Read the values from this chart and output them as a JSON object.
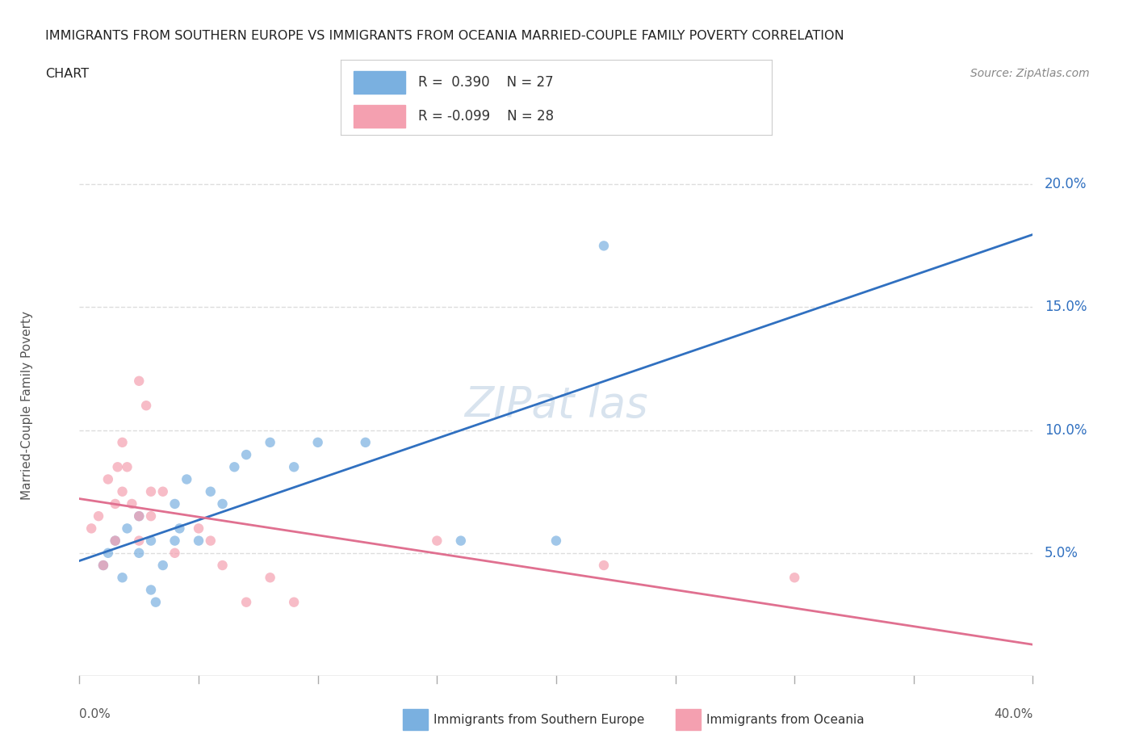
{
  "title_line1": "IMMIGRANTS FROM SOUTHERN EUROPE VS IMMIGRANTS FROM OCEANIA MARRIED-COUPLE FAMILY POVERTY CORRELATION",
  "title_line2": "CHART",
  "source": "Source: ZipAtlas.com",
  "ylabel": "Married-Couple Family Poverty",
  "yticks": [
    0.0,
    0.05,
    0.1,
    0.15,
    0.2
  ],
  "ytick_labels": [
    "",
    "5.0%",
    "10.0%",
    "15.0%",
    "20.0%"
  ],
  "xmin": 0.0,
  "xmax": 0.4,
  "ymin": 0.0,
  "ymax": 0.22,
  "legend_blue_r": "R =  0.390",
  "legend_blue_n": "N = 27",
  "legend_pink_r": "R = -0.099",
  "legend_pink_n": "N = 28",
  "blue_color": "#7ab0e0",
  "pink_color": "#f4a0b0",
  "blue_line_color": "#3070c0",
  "pink_line_color": "#e07090",
  "blue_scatter": [
    [
      0.01,
      0.045
    ],
    [
      0.012,
      0.05
    ],
    [
      0.015,
      0.055
    ],
    [
      0.018,
      0.04
    ],
    [
      0.02,
      0.06
    ],
    [
      0.025,
      0.05
    ],
    [
      0.025,
      0.065
    ],
    [
      0.03,
      0.055
    ],
    [
      0.03,
      0.035
    ],
    [
      0.032,
      0.03
    ],
    [
      0.035,
      0.045
    ],
    [
      0.04,
      0.055
    ],
    [
      0.04,
      0.07
    ],
    [
      0.042,
      0.06
    ],
    [
      0.045,
      0.08
    ],
    [
      0.05,
      0.055
    ],
    [
      0.055,
      0.075
    ],
    [
      0.06,
      0.07
    ],
    [
      0.065,
      0.085
    ],
    [
      0.07,
      0.09
    ],
    [
      0.08,
      0.095
    ],
    [
      0.09,
      0.085
    ],
    [
      0.1,
      0.095
    ],
    [
      0.12,
      0.095
    ],
    [
      0.16,
      0.055
    ],
    [
      0.2,
      0.055
    ],
    [
      0.22,
      0.175
    ]
  ],
  "pink_scatter": [
    [
      0.005,
      0.06
    ],
    [
      0.008,
      0.065
    ],
    [
      0.01,
      0.045
    ],
    [
      0.012,
      0.08
    ],
    [
      0.015,
      0.055
    ],
    [
      0.015,
      0.07
    ],
    [
      0.016,
      0.085
    ],
    [
      0.018,
      0.095
    ],
    [
      0.018,
      0.075
    ],
    [
      0.02,
      0.085
    ],
    [
      0.022,
      0.07
    ],
    [
      0.025,
      0.065
    ],
    [
      0.025,
      0.055
    ],
    [
      0.025,
      0.12
    ],
    [
      0.028,
      0.11
    ],
    [
      0.03,
      0.075
    ],
    [
      0.03,
      0.065
    ],
    [
      0.035,
      0.075
    ],
    [
      0.04,
      0.05
    ],
    [
      0.05,
      0.06
    ],
    [
      0.055,
      0.055
    ],
    [
      0.06,
      0.045
    ],
    [
      0.07,
      0.03
    ],
    [
      0.08,
      0.04
    ],
    [
      0.09,
      0.03
    ],
    [
      0.15,
      0.055
    ],
    [
      0.22,
      0.045
    ],
    [
      0.3,
      0.04
    ]
  ],
  "background_color": "#ffffff",
  "grid_color": "#dddddd",
  "scatter_size": 80,
  "scatter_alpha": 0.7
}
